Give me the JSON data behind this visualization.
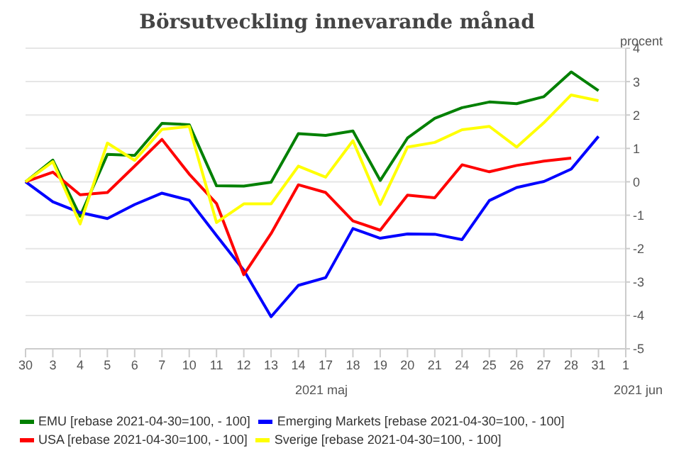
{
  "chart_data": {
    "type": "line",
    "title": "Börsutveckling innevarande månad",
    "ylabel": "procent",
    "categories": [
      "30",
      "3",
      "4",
      "5",
      "6",
      "7",
      "10",
      "11",
      "12",
      "13",
      "14",
      "17",
      "18",
      "19",
      "20",
      "21",
      "24",
      "25",
      "26",
      "27",
      "28",
      "31",
      "1"
    ],
    "series": [
      {
        "name": "EMU [rebase 2021-04-30=100, - 100]",
        "color": "#008000",
        "values": [
          0,
          0.65,
          -1.03,
          0.82,
          0.79,
          1.75,
          1.71,
          -0.12,
          -0.13,
          -0.01,
          1.44,
          1.39,
          1.52,
          0.04,
          1.31,
          1.9,
          2.22,
          2.39,
          2.34,
          2.55,
          3.29,
          2.73,
          null
        ]
      },
      {
        "name": "Emerging Markets [rebase 2021-04-30=100, - 100]",
        "color": "#0000ff",
        "values": [
          0,
          -0.6,
          -0.92,
          -1.1,
          -0.68,
          -0.34,
          -0.55,
          -1.61,
          -2.65,
          -4.04,
          -3.1,
          -2.87,
          -1.4,
          -1.69,
          -1.56,
          -1.57,
          -1.73,
          -0.56,
          -0.17,
          0.01,
          0.38,
          1.36,
          null
        ]
      },
      {
        "name": "USA [rebase 2021-04-30=100, - 100]",
        "color": "#ff0000",
        "values": [
          0,
          0.29,
          -0.39,
          -0.32,
          0.47,
          1.27,
          0.23,
          -0.65,
          -2.78,
          -1.55,
          -0.09,
          -0.32,
          -1.17,
          -1.45,
          -0.4,
          -0.48,
          0.51,
          0.3,
          0.49,
          0.62,
          0.71,
          null,
          null
        ]
      },
      {
        "name": "Sverige [rebase 2021-04-30=100, - 100]",
        "color": "#ffff00",
        "values": [
          0,
          0.6,
          -1.26,
          1.16,
          0.64,
          1.57,
          1.66,
          -1.22,
          -0.66,
          -0.66,
          0.47,
          0.14,
          1.23,
          -0.68,
          1.04,
          1.18,
          1.56,
          1.66,
          1.04,
          1.77,
          2.6,
          2.43,
          null
        ]
      }
    ],
    "ylim": [
      -5,
      4
    ],
    "yticks": [
      -5,
      -4,
      -3,
      -2,
      -1,
      0,
      1,
      2,
      3,
      4
    ],
    "grid": "y",
    "legend": "bottom",
    "marker": "none",
    "line_style": "solid",
    "annotations": [
      "2021 maj",
      "2021 jun"
    ]
  }
}
